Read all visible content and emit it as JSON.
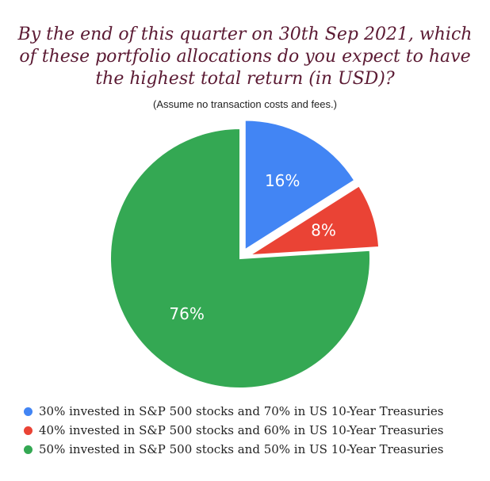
{
  "chart_data": {
    "type": "pie",
    "title": "By the end of this quarter on 30th Sep 2021, which of these portfolio allocations do you expect to have the highest total return (in USD)?",
    "title_lines": [
      "By the end of this quarter on 30th Sep 2021, which",
      "of these portfolio allocations do you expect to have",
      "the highest total return (in USD)?"
    ],
    "subtitle": "(Assume no transaction costs and fees.)",
    "slices": [
      {
        "label": "30% invested in S&P 500 stocks and 70% in US 10-Year Treasuries",
        "value": 16,
        "display": "16%",
        "color": "#4285f4",
        "exploded": true
      },
      {
        "label": "40% invested in S&P 500 stocks and 60% in US 10-Year Treasuries",
        "value": 8,
        "display": "8%",
        "color": "#ea4335",
        "exploded": true
      },
      {
        "label": "50% invested in S&P 500 stocks and 50% in US 10-Year Treasuries",
        "value": 76,
        "display": "76%",
        "color": "#34a853",
        "exploded": false
      }
    ],
    "legend_position": "bottom"
  }
}
